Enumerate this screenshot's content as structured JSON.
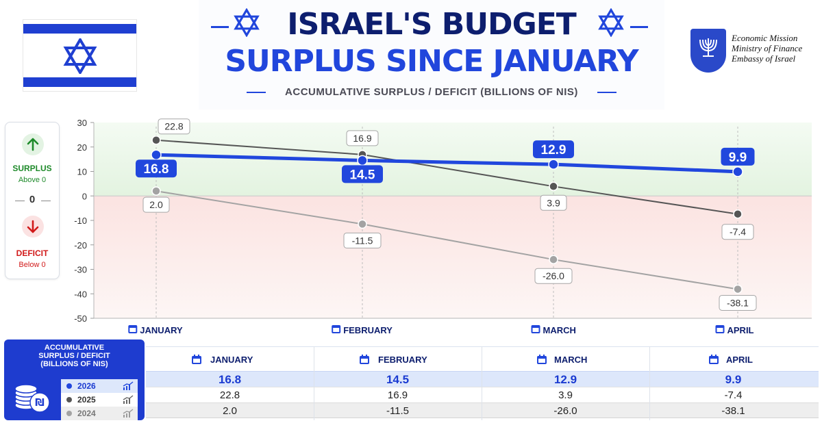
{
  "header": {
    "title_line1": "ISRAEL'S BUDGET",
    "title_line2": "SURPLUS SINCE JANUARY",
    "subtitle": "ACCUMULATIVE SURPLUS / DEFICIT (BILLIONS OF NIS)",
    "org_lines": [
      "Economic Mission",
      "Ministry of Finance",
      "Embassy of Israel"
    ]
  },
  "legend_box": {
    "surplus_label": "SURPLUS",
    "surplus_sub": "Above 0",
    "zero_label": "0",
    "deficit_label": "DEFICIT",
    "deficit_sub": "Below 0"
  },
  "colors": {
    "series_2026": "#2147dd",
    "series_2025": "#555555",
    "series_2024": "#a3a3a3",
    "surplus": "#1e8a2a",
    "deficit": "#d11a1a",
    "title_dark": "#0d1e6e",
    "title_blue": "#2146dc"
  },
  "chart_data": {
    "type": "line",
    "title": "ISRAEL'S BUDGET SURPLUS SINCE JANUARY",
    "subtitle": "ACCUMULATIVE SURPLUS / DEFICIT (BILLIONS OF NIS)",
    "categories": [
      "JANUARY",
      "FEBRUARY",
      "MARCH",
      "APRIL"
    ],
    "series": [
      {
        "name": "2026",
        "values": [
          16.8,
          14.5,
          12.9,
          9.9
        ],
        "data_labels": [
          "16.8",
          "14.5",
          "12.9",
          "9.9"
        ]
      },
      {
        "name": "2025",
        "values": [
          22.8,
          16.9,
          3.9,
          -7.4
        ],
        "data_labels": [
          "22.8",
          "16.9",
          "3.9",
          "-7.4"
        ]
      },
      {
        "name": "2024",
        "values": [
          2.0,
          -11.5,
          -26.0,
          -38.1
        ],
        "data_labels": [
          "2.0",
          "-11.5",
          "-26.0",
          "-38.1"
        ]
      }
    ],
    "ylim": [
      -50,
      30
    ],
    "yticks": [
      "30",
      "20",
      "10",
      "0",
      "-10",
      "-20",
      "-30",
      "-40",
      "-50"
    ],
    "xlabel": "",
    "ylabel": "",
    "grid": false
  },
  "table": {
    "title": "ACCUMULATIVE SURPLUS / DEFICIT (BILLIONS OF NIS)",
    "title_lines": [
      "ACCUMULATIVE",
      "SURPLUS / DEFICIT",
      "(BILLIONS OF NIS)"
    ],
    "months": [
      "JANUARY",
      "FEBRUARY",
      "MARCH",
      "APRIL"
    ],
    "rows": [
      {
        "year": "2026",
        "values": [
          "16.8",
          "14.5",
          "12.9",
          "9.9"
        ]
      },
      {
        "year": "2025",
        "values": [
          "22.8",
          "16.9",
          "3.9",
          "-7.4"
        ]
      },
      {
        "year": "2024",
        "values": [
          "2.0",
          "-11.5",
          "-26.0",
          "-38.1"
        ]
      }
    ]
  }
}
